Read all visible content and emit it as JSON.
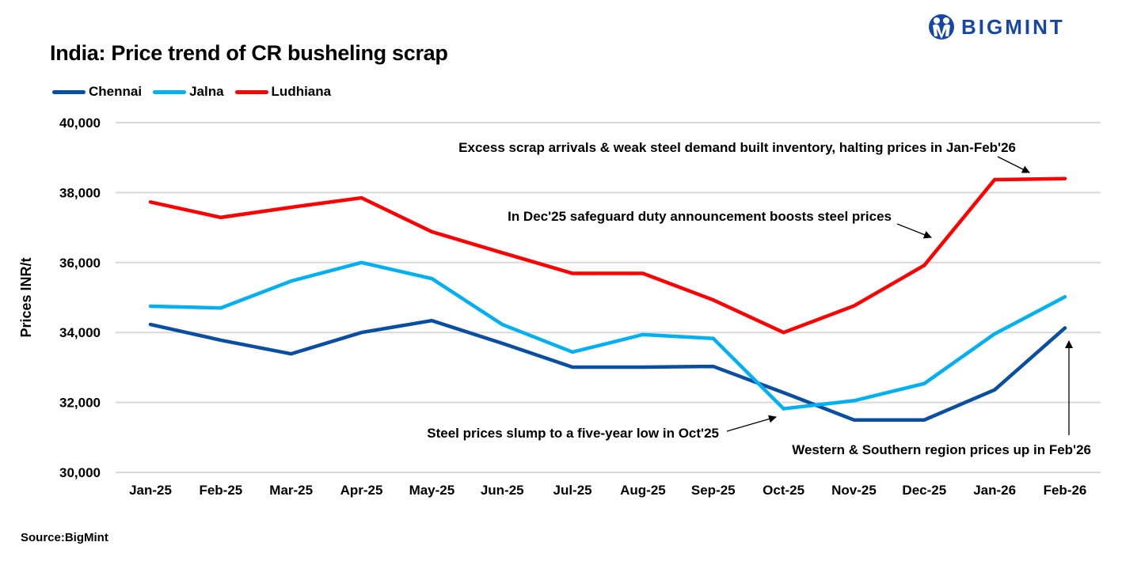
{
  "header": {
    "title": "India: Price trend of CR busheling scrap",
    "brand": "BIGMINT",
    "brand_color": "#1747a6"
  },
  "footer": {
    "source": "Source:BigMint"
  },
  "chart_data": {
    "type": "line",
    "title": "India: Price trend of CR busheling scrap",
    "xlabel": "",
    "ylabel": "Prices INR/t",
    "ylim": [
      30000,
      40000
    ],
    "yticks": [
      30000,
      32000,
      34000,
      36000,
      38000,
      40000
    ],
    "ytick_labels": [
      "30,000",
      "32,000",
      "34,000",
      "36,000",
      "38,000",
      "40,000"
    ],
    "grid": true,
    "legend_position": "top-left",
    "categories": [
      "Jan-25",
      "Feb-25",
      "Mar-25",
      "Apr-25",
      "May-25",
      "Jun-25",
      "Jul-25",
      "Aug-25",
      "Sep-25",
      "Oct-25",
      "Nov-25",
      "Dec-25",
      "Jan-26",
      "Feb-26"
    ],
    "series": [
      {
        "name": "Chennai",
        "color": "#0a4ea2",
        "values": [
          34230,
          33780,
          33390,
          34000,
          34340,
          33690,
          33010,
          33010,
          33030,
          32280,
          31500,
          31500,
          32360,
          34130
        ]
      },
      {
        "name": "Jalna",
        "color": "#00b0f0",
        "values": [
          34750,
          34700,
          35470,
          36000,
          35540,
          34230,
          33440,
          33940,
          33830,
          31820,
          32050,
          32540,
          33960,
          35020
        ]
      },
      {
        "name": "Ludhiana",
        "color": "#ff0000",
        "values": [
          37730,
          37290,
          37580,
          37850,
          36880,
          36280,
          35690,
          35690,
          34930,
          34000,
          34760,
          35920,
          38370,
          38400
        ]
      }
    ],
    "annotations": [
      {
        "text": "Excess scrap arrivals & weak steel demand built inventory, halting prices in Jan-Feb'26",
        "target_category": "Jan-26/Feb-26",
        "target_series": "Ludhiana"
      },
      {
        "text": "In Dec'25 safeguard duty announcement boosts steel prices",
        "target_category": "Dec-25",
        "target_series": "Ludhiana"
      },
      {
        "text": "Steel prices slump to a five-year low in Oct'25",
        "target_category": "Oct-25",
        "target_series": "Jalna"
      },
      {
        "text": "Western & Southern region prices up in Feb'26",
        "target_category": "Feb-26",
        "target_series": "Chennai"
      }
    ]
  }
}
